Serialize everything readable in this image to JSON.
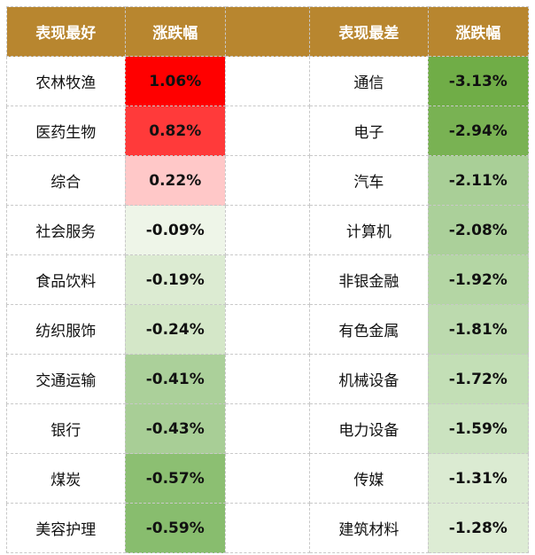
{
  "chart_data": {
    "type": "table",
    "columns": [
      "表现最好",
      "涨跌幅",
      "",
      "表现最差",
      "涨跌幅"
    ],
    "best": [
      {
        "name": "农林牧渔",
        "change": 1.06,
        "label": "1.06%",
        "color": "#ff0000"
      },
      {
        "name": "医药生物",
        "change": 0.82,
        "label": "0.82%",
        "color": "#ff3a3a"
      },
      {
        "name": "综合",
        "change": 0.22,
        "label": "0.22%",
        "color": "#ffc8c8"
      },
      {
        "name": "社会服务",
        "change": -0.09,
        "label": "-0.09%",
        "color": "#eef5e8"
      },
      {
        "name": "食品饮料",
        "change": -0.19,
        "label": "-0.19%",
        "color": "#dcebd2"
      },
      {
        "name": "纺织服饰",
        "change": -0.24,
        "label": "-0.24%",
        "color": "#d4e7c8"
      },
      {
        "name": "交通运输",
        "change": -0.41,
        "label": "-0.41%",
        "color": "#abd09a"
      },
      {
        "name": "银行",
        "change": -0.43,
        "label": "-0.43%",
        "color": "#a8ce96"
      },
      {
        "name": "煤炭",
        "change": -0.57,
        "label": "-0.57%",
        "color": "#8cbf72"
      },
      {
        "name": "美容护理",
        "change": -0.59,
        "label": "-0.59%",
        "color": "#88bd6e"
      }
    ],
    "worst": [
      {
        "name": "通信",
        "change": -3.13,
        "label": "-3.13%",
        "color": "#70ad47"
      },
      {
        "name": "电子",
        "change": -2.94,
        "label": "-2.94%",
        "color": "#79b253"
      },
      {
        "name": "汽车",
        "change": -2.11,
        "label": "-2.11%",
        "color": "#a9cf97"
      },
      {
        "name": "计算机",
        "change": -2.08,
        "label": "-2.08%",
        "color": "#abd09a"
      },
      {
        "name": "非银金融",
        "change": -1.92,
        "label": "-1.92%",
        "color": "#b4d6a4"
      },
      {
        "name": "有色金属",
        "change": -1.81,
        "label": "-1.81%",
        "color": "#bcdaae"
      },
      {
        "name": "机械设备",
        "change": -1.72,
        "label": "-1.72%",
        "color": "#c3dfb6"
      },
      {
        "name": "电力设备",
        "change": -1.59,
        "label": "-1.59%",
        "color": "#cbe3c0"
      },
      {
        "name": "传媒",
        "change": -1.31,
        "label": "-1.31%",
        "color": "#dbebd2"
      },
      {
        "name": "建筑材料",
        "change": -1.28,
        "label": "-1.28%",
        "color": "#ddecd4"
      }
    ],
    "header_color": "#b8862f"
  }
}
